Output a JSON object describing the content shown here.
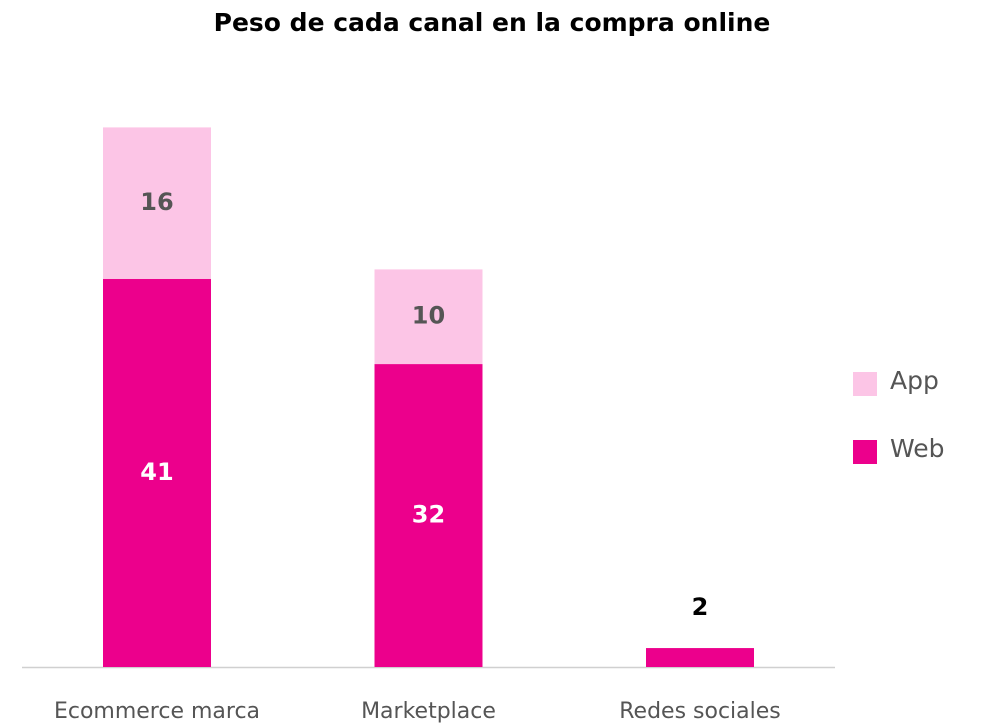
{
  "chart_data": {
    "type": "stacked_bar",
    "title": "Peso de cada canal en la compra online",
    "categories": [
      "Ecommerce marca",
      "Marketplace",
      "Redes sociales"
    ],
    "series": [
      {
        "name": "Web",
        "color": "#ec008c",
        "values": [
          41,
          32,
          2
        ]
      },
      {
        "name": "App",
        "color": "#fcc5e6",
        "values": [
          16,
          10,
          null
        ]
      }
    ],
    "ylim": [
      0,
      60
    ],
    "legend": "right"
  }
}
